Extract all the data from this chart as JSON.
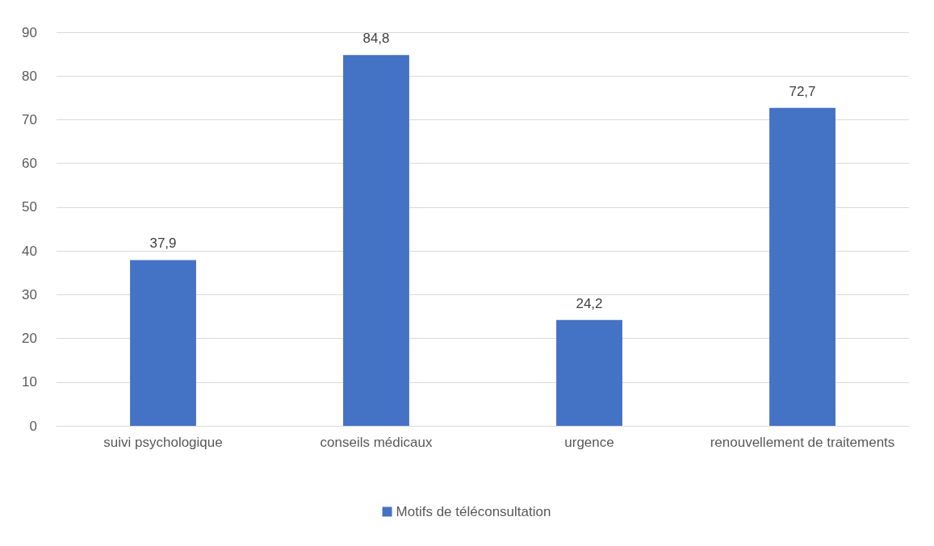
{
  "chart_data": {
    "type": "bar",
    "categories": [
      "suivi psychologique",
      "conseils médicaux",
      "urgence",
      "renouvellement de traitements"
    ],
    "series": [
      {
        "name": "Motifs de téléconsultation",
        "color": "#4472c4",
        "values": [
          37.9,
          84.8,
          24.2,
          72.7
        ],
        "value_labels": [
          "37,9",
          "84,8",
          "24,2",
          "72,7"
        ]
      }
    ],
    "ylim": [
      0,
      90
    ],
    "yticks": [
      0,
      10,
      20,
      30,
      40,
      50,
      60,
      70,
      80,
      90
    ],
    "grid": "y",
    "legend": "bottom"
  }
}
